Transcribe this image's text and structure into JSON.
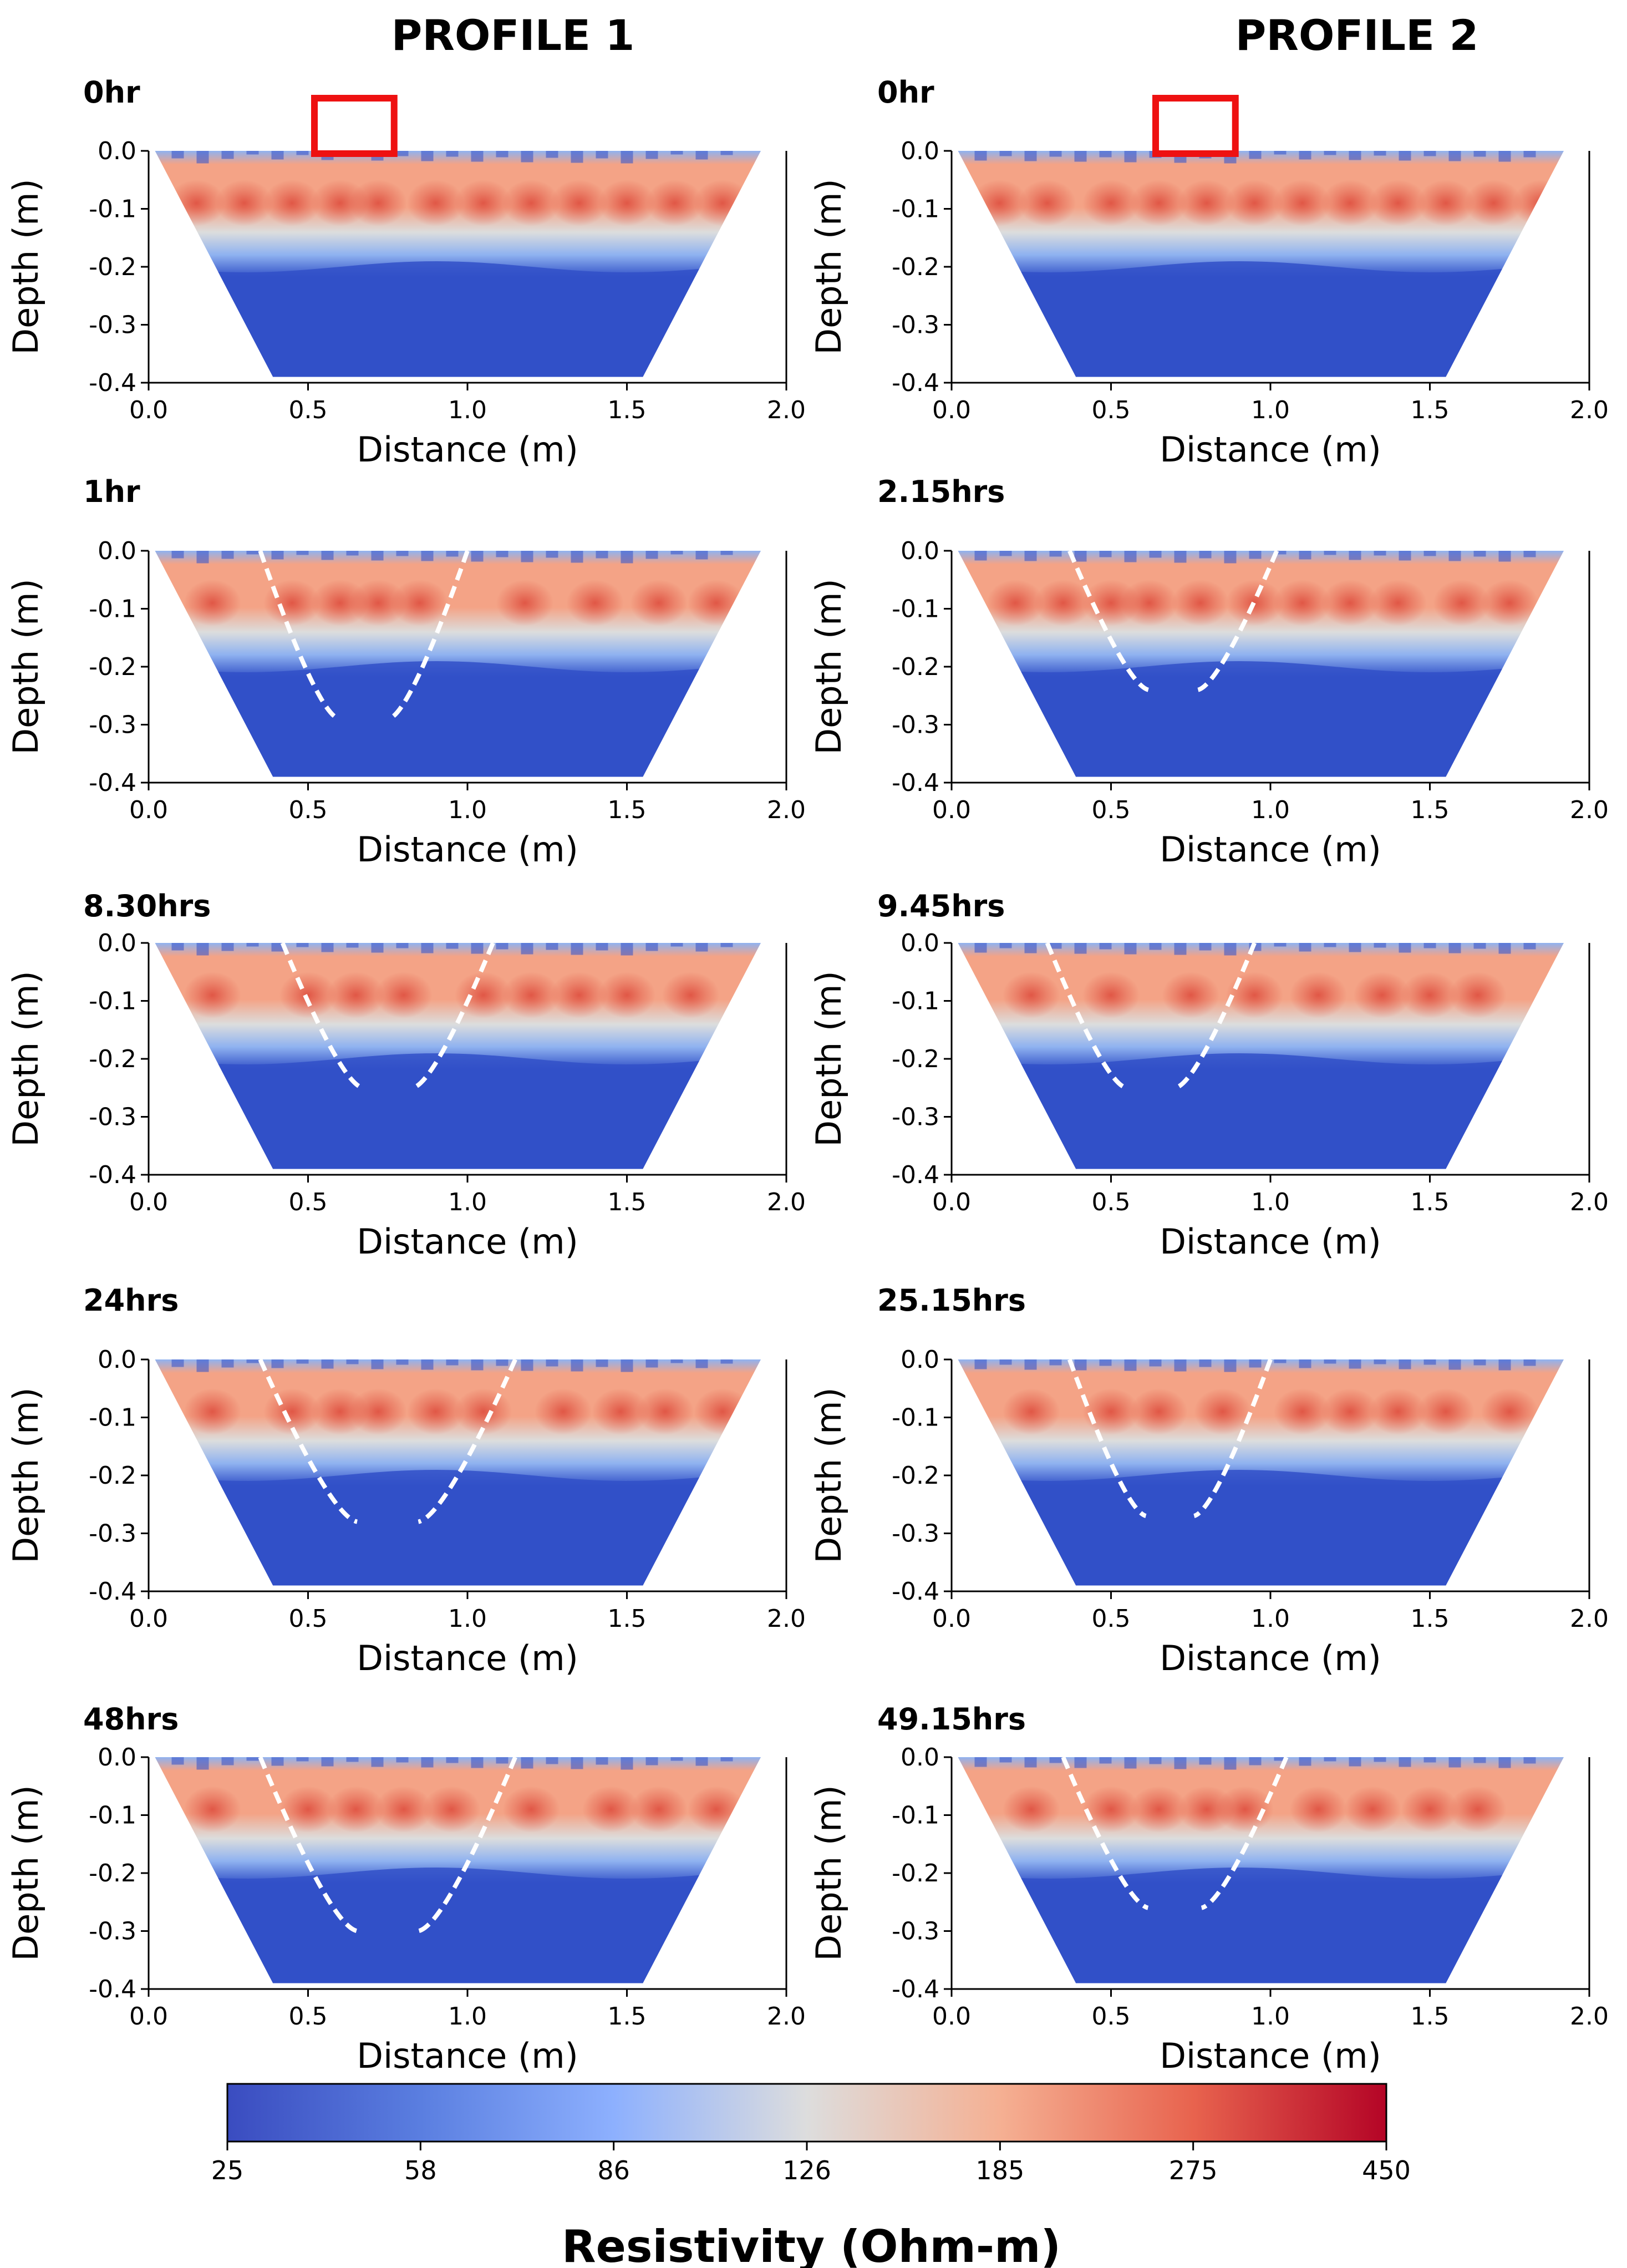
{
  "figure": {
    "column_headers": [
      "PROFILE 1",
      "PROFILE 2"
    ],
    "colorbar": {
      "label": "Resistivity (Ohm-m)",
      "ticks": [
        "25",
        "58",
        "86",
        "126",
        "185",
        "275",
        "450"
      ],
      "colors": [
        "#3a4cc0",
        "#5a7ee0",
        "#8db0fe",
        "#dddddd",
        "#f5b093",
        "#e8634e",
        "#b40426"
      ]
    },
    "colors": {
      "deep_low": "#3150c8",
      "mid_low": "#8fb2f0",
      "transition": "#dcdddd",
      "high": "#f4a386",
      "very_high": "#dd4a3b",
      "infiltration_outline": "#ffffff",
      "source_marker": "#ee1111"
    }
  },
  "chart_data": [
    {
      "type": "heatmap",
      "profile": "PROFILE 1",
      "title": "0hr",
      "xlabel": "Distance (m)",
      "ylabel": "Depth (m)",
      "xlim": [
        0.0,
        2.0
      ],
      "ylim": [
        -0.4,
        0.0
      ],
      "xticks": [
        "0.0",
        "0.5",
        "1.0",
        "1.5",
        "2.0"
      ],
      "yticks": [
        "0.0",
        "-0.1",
        "-0.2",
        "-0.3",
        "-0.4"
      ],
      "section_top_x": [
        0.02,
        1.92
      ],
      "section_bottom_x": [
        0.39,
        1.55
      ],
      "low_boundary_depth": 0.2,
      "high_band_center": [
        0.15,
        0.3,
        0.45,
        0.6,
        0.72,
        0.9,
        1.05,
        1.2,
        1.35,
        1.5,
        1.65,
        1.8
      ],
      "source_box_x": [
        0.52,
        0.77
      ],
      "plume_x": null,
      "plume_bottom_depth": null
    },
    {
      "type": "heatmap",
      "profile": "PROFILE 2",
      "title": "0hr",
      "xlabel": "Distance (m)",
      "ylabel": "Depth (m)",
      "xlim": [
        0.0,
        2.0
      ],
      "ylim": [
        -0.4,
        0.0
      ],
      "xticks": [
        "0.0",
        "0.5",
        "1.0",
        "1.5",
        "2.0"
      ],
      "yticks": [
        "0.0",
        "-0.1",
        "-0.2",
        "-0.3",
        "-0.4"
      ],
      "section_top_x": [
        0.02,
        1.92
      ],
      "section_bottom_x": [
        0.39,
        1.55
      ],
      "low_boundary_depth": 0.2,
      "high_band_center": [
        0.15,
        0.3,
        0.5,
        0.65,
        0.8,
        0.95,
        1.1,
        1.25,
        1.4,
        1.55,
        1.7,
        1.85
      ],
      "source_box_x": [
        0.64,
        0.89
      ],
      "plume_x": null,
      "plume_bottom_depth": null
    },
    {
      "type": "heatmap",
      "profile": "PROFILE 1",
      "title": "1hr",
      "xlabel": "Distance (m)",
      "ylabel": "Depth (m)",
      "xlim": [
        0.0,
        2.0
      ],
      "ylim": [
        -0.4,
        0.0
      ],
      "xticks": [
        "0.0",
        "0.5",
        "1.0",
        "1.5",
        "2.0"
      ],
      "yticks": [
        "0.0",
        "-0.1",
        "-0.2",
        "-0.3",
        "-0.4"
      ],
      "section_top_x": [
        0.02,
        1.92
      ],
      "section_bottom_x": [
        0.39,
        1.55
      ],
      "low_boundary_depth": 0.2,
      "high_band_center": [
        0.2,
        0.45,
        0.6,
        0.72,
        0.85,
        1.18,
        1.4,
        1.6,
        1.78
      ],
      "source_box_x": null,
      "plume_x": [
        0.35,
        1.0
      ],
      "plume_bottom_depth": 0.29
    },
    {
      "type": "heatmap",
      "profile": "PROFILE 2",
      "title": "2.15hrs",
      "xlabel": "Distance (m)",
      "ylabel": "Depth (m)",
      "xlim": [
        0.0,
        2.0
      ],
      "ylim": [
        -0.4,
        0.0
      ],
      "xticks": [
        "0.0",
        "0.5",
        "1.0",
        "1.5",
        "2.0"
      ],
      "yticks": [
        "0.0",
        "-0.1",
        "-0.2",
        "-0.3",
        "-0.4"
      ],
      "section_top_x": [
        0.02,
        1.92
      ],
      "section_bottom_x": [
        0.39,
        1.55
      ],
      "low_boundary_depth": 0.2,
      "high_band_center": [
        0.2,
        0.35,
        0.5,
        0.62,
        0.78,
        0.95,
        1.1,
        1.25,
        1.4,
        1.6,
        1.75
      ],
      "source_box_x": null,
      "plume_x": [
        0.37,
        1.02
      ],
      "plume_bottom_depth": 0.24
    },
    {
      "type": "heatmap",
      "profile": "PROFILE 1",
      "title": "8.30hrs",
      "xlabel": "Distance (m)",
      "ylabel": "Depth (m)",
      "xlim": [
        0.0,
        2.0
      ],
      "ylim": [
        -0.4,
        0.0
      ],
      "xticks": [
        "0.0",
        "0.5",
        "1.0",
        "1.5",
        "2.0"
      ],
      "yticks": [
        "0.0",
        "-0.1",
        "-0.2",
        "-0.3",
        "-0.4"
      ],
      "section_top_x": [
        0.02,
        1.92
      ],
      "section_bottom_x": [
        0.39,
        1.55
      ],
      "low_boundary_depth": 0.2,
      "high_band_center": [
        0.2,
        0.5,
        0.65,
        0.8,
        1.05,
        1.2,
        1.35,
        1.5,
        1.7
      ],
      "source_box_x": null,
      "plume_x": [
        0.42,
        1.08
      ],
      "plume_bottom_depth": 0.25
    },
    {
      "type": "heatmap",
      "profile": "PROFILE 2",
      "title": "9.45hrs",
      "xlabel": "Distance (m)",
      "ylabel": "Depth (m)",
      "xlim": [
        0.0,
        2.0
      ],
      "ylim": [
        -0.4,
        0.0
      ],
      "xticks": [
        "0.0",
        "0.5",
        "1.0",
        "1.5",
        "2.0"
      ],
      "yticks": [
        "0.0",
        "-0.1",
        "-0.2",
        "-0.3",
        "-0.4"
      ],
      "section_top_x": [
        0.02,
        1.92
      ],
      "section_bottom_x": [
        0.39,
        1.55
      ],
      "low_boundary_depth": 0.2,
      "high_band_center": [
        0.25,
        0.5,
        0.75,
        0.95,
        1.15,
        1.35,
        1.5,
        1.65
      ],
      "source_box_x": null,
      "plume_x": [
        0.3,
        0.95
      ],
      "plume_bottom_depth": 0.25
    },
    {
      "type": "heatmap",
      "profile": "PROFILE 1",
      "title": "24hrs",
      "xlabel": "Distance (m)",
      "ylabel": "Depth (m)",
      "xlim": [
        0.0,
        2.0
      ],
      "ylim": [
        -0.4,
        0.0
      ],
      "xticks": [
        "0.0",
        "0.5",
        "1.0",
        "1.5",
        "2.0"
      ],
      "yticks": [
        "0.0",
        "-0.1",
        "-0.2",
        "-0.3",
        "-0.4"
      ],
      "section_top_x": [
        0.02,
        1.92
      ],
      "section_bottom_x": [
        0.39,
        1.55
      ],
      "low_boundary_depth": 0.2,
      "high_band_center": [
        0.2,
        0.45,
        0.6,
        0.72,
        0.9,
        1.05,
        1.3,
        1.48,
        1.62,
        1.8
      ],
      "source_box_x": null,
      "plume_x": [
        0.35,
        1.15
      ],
      "plume_bottom_depth": 0.28
    },
    {
      "type": "heatmap",
      "profile": "PROFILE 2",
      "title": "25.15hrs",
      "xlabel": "Distance (m)",
      "ylabel": "Depth (m)",
      "xlim": [
        0.0,
        2.0
      ],
      "ylim": [
        -0.4,
        0.0
      ],
      "xticks": [
        "0.0",
        "0.5",
        "1.0",
        "1.5",
        "2.0"
      ],
      "yticks": [
        "0.0",
        "-0.1",
        "-0.2",
        "-0.3",
        "-0.4"
      ],
      "section_top_x": [
        0.02,
        1.92
      ],
      "section_bottom_x": [
        0.39,
        1.55
      ],
      "low_boundary_depth": 0.2,
      "high_band_center": [
        0.25,
        0.5,
        0.65,
        0.85,
        1.1,
        1.25,
        1.4,
        1.55,
        1.75
      ],
      "source_box_x": null,
      "plume_x": [
        0.37,
        1.0
      ],
      "plume_bottom_depth": 0.27
    },
    {
      "type": "heatmap",
      "profile": "PROFILE 1",
      "title": "48hrs",
      "xlabel": "Distance (m)",
      "ylabel": "Depth (m)",
      "xlim": [
        0.0,
        2.0
      ],
      "ylim": [
        -0.4,
        0.0
      ],
      "xticks": [
        "0.0",
        "0.5",
        "1.0",
        "1.5",
        "2.0"
      ],
      "yticks": [
        "0.0",
        "-0.1",
        "-0.2",
        "-0.3",
        "-0.4"
      ],
      "section_top_x": [
        0.02,
        1.92
      ],
      "section_bottom_x": [
        0.39,
        1.55
      ],
      "low_boundary_depth": 0.2,
      "high_band_center": [
        0.2,
        0.5,
        0.65,
        0.8,
        0.95,
        1.2,
        1.45,
        1.6,
        1.78
      ],
      "source_box_x": null,
      "plume_x": [
        0.35,
        1.15
      ],
      "plume_bottom_depth": 0.3
    },
    {
      "type": "heatmap",
      "profile": "PROFILE 2",
      "title": "49.15hrs",
      "xlabel": "Distance (m)",
      "ylabel": "Depth (m)",
      "xlim": [
        0.0,
        2.0
      ],
      "ylim": [
        -0.4,
        0.0
      ],
      "xticks": [
        "0.0",
        "0.5",
        "1.0",
        "1.5",
        "2.0"
      ],
      "yticks": [
        "0.0",
        "-0.1",
        "-0.2",
        "-0.3",
        "-0.4"
      ],
      "section_top_x": [
        0.02,
        1.92
      ],
      "section_bottom_x": [
        0.39,
        1.55
      ],
      "low_boundary_depth": 0.2,
      "high_band_center": [
        0.25,
        0.5,
        0.65,
        0.8,
        0.92,
        1.15,
        1.32,
        1.5,
        1.65
      ],
      "source_box_x": null,
      "plume_x": [
        0.35,
        1.05
      ],
      "plume_bottom_depth": 0.26
    }
  ]
}
